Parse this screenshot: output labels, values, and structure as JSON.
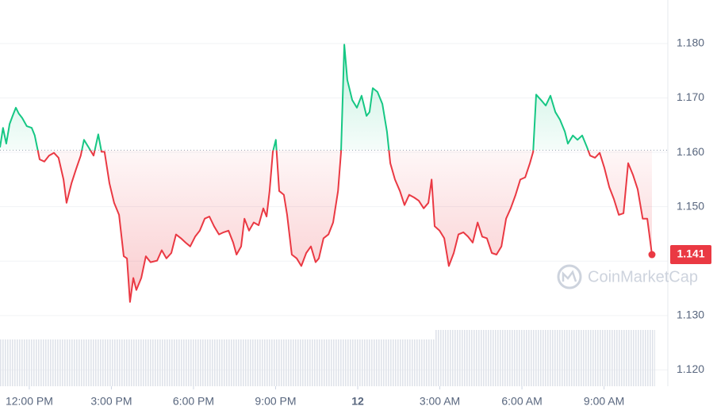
{
  "chart_data": {
    "type": "line",
    "x": [
      -1.07,
      -0.96,
      -0.84,
      -0.72,
      -0.61,
      -0.49,
      -0.38,
      -0.26,
      -0.09,
      0.09,
      0.2,
      0.38,
      0.55,
      0.72,
      0.9,
      1.07,
      1.25,
      1.36,
      1.54,
      1.71,
      1.88,
      2.0,
      2.17,
      2.35,
      2.52,
      2.64,
      2.75,
      2.93,
      3.1,
      3.28,
      3.45,
      3.57,
      3.68,
      3.8,
      3.91,
      4.09,
      4.26,
      4.43,
      4.67,
      4.84,
      5.01,
      5.19,
      5.36,
      5.54,
      5.71,
      5.88,
      6.06,
      6.23,
      6.41,
      6.58,
      6.75,
      6.93,
      7.1,
      7.28,
      7.45,
      7.57,
      7.74,
      7.86,
      8.03,
      8.2,
      8.38,
      8.55,
      8.67,
      8.78,
      8.9,
      9.01,
      9.13,
      9.3,
      9.42,
      9.59,
      9.77,
      9.94,
      10.12,
      10.29,
      10.46,
      10.58,
      10.75,
      10.93,
      11.1,
      11.28,
      11.39,
      11.51,
      11.62,
      11.8,
      11.97,
      12.14,
      12.32,
      12.43,
      12.55,
      12.72,
      12.9,
      13.07,
      13.19,
      13.36,
      13.54,
      13.71,
      13.88,
      14.06,
      14.23,
      14.41,
      14.58,
      14.7,
      14.81,
      14.99,
      15.16,
      15.33,
      15.51,
      15.68,
      15.86,
      16.03,
      16.2,
      16.38,
      16.55,
      16.72,
      16.9,
      17.07,
      17.25,
      17.42,
      17.59,
      17.77,
      17.94,
      18.12,
      18.29,
      18.41,
      18.52,
      18.7,
      18.87,
      19.04,
      19.22,
      19.39,
      19.57,
      19.68,
      19.86,
      20.03,
      20.2,
      20.38,
      20.49,
      20.67,
      20.84,
      21.01,
      21.19,
      21.36,
      21.54,
      21.71,
      21.88,
      22.06,
      22.23,
      22.41,
      22.58,
      22.75
    ],
    "values": [
      1.1609,
      1.1645,
      1.1616,
      1.1652,
      1.1667,
      1.1682,
      1.1671,
      1.1663,
      1.1648,
      1.1645,
      1.1631,
      1.1587,
      1.1583,
      1.1594,
      1.1599,
      1.159,
      1.155,
      1.1507,
      1.1543,
      1.1569,
      1.1594,
      1.1623,
      1.1609,
      1.1594,
      1.1633,
      1.1601,
      1.1601,
      1.1543,
      1.1507,
      1.1485,
      1.1409,
      1.1405,
      1.1325,
      1.1369,
      1.1347,
      1.1369,
      1.1409,
      1.1398,
      1.1401,
      1.142,
      1.1405,
      1.1415,
      1.1449,
      1.1442,
      1.1434,
      1.1427,
      1.1445,
      1.1456,
      1.1478,
      1.1482,
      1.1464,
      1.1449,
      1.1453,
      1.1456,
      1.1434,
      1.1412,
      1.1427,
      1.1478,
      1.1456,
      1.1471,
      1.1466,
      1.1497,
      1.1482,
      1.1529,
      1.1601,
      1.1623,
      1.1529,
      1.1522,
      1.1485,
      1.1412,
      1.1405,
      1.1391,
      1.1415,
      1.1427,
      1.1398,
      1.1405,
      1.1442,
      1.1449,
      1.1471,
      1.1529,
      1.1601,
      1.1798,
      1.1733,
      1.1696,
      1.1682,
      1.1704,
      1.1667,
      1.1674,
      1.1718,
      1.1711,
      1.1689,
      1.1638,
      1.158,
      1.155,
      1.1529,
      1.1503,
      1.1522,
      1.1517,
      1.1511,
      1.1497,
      1.1507,
      1.155,
      1.1464,
      1.1456,
      1.1442,
      1.1391,
      1.1415,
      1.1449,
      1.1453,
      1.1445,
      1.1434,
      1.1471,
      1.1445,
      1.1442,
      1.1415,
      1.1412,
      1.1427,
      1.1478,
      1.1497,
      1.1522,
      1.155,
      1.1554,
      1.158,
      1.1601,
      1.1706,
      1.1696,
      1.1686,
      1.1704,
      1.1674,
      1.166,
      1.1638,
      1.1616,
      1.1631,
      1.1623,
      1.1631,
      1.1609,
      1.1594,
      1.159,
      1.1599,
      1.1572,
      1.1536,
      1.1514,
      1.1485,
      1.1488,
      1.158,
      1.1558,
      1.1532,
      1.1478,
      1.1478,
      1.1412
    ],
    "reference_line": 1.1604,
    "up_color": "#16c784",
    "down_color": "#ea3943",
    "price_label": "1.141",
    "watermark": "CoinMarketCap",
    "xlim": [
      -1.07,
      23.33
    ],
    "xticks": [
      {
        "value": 0,
        "label": "12:00 PM"
      },
      {
        "value": 3,
        "label": "3:00 PM"
      },
      {
        "value": 6,
        "label": "6:00 PM"
      },
      {
        "value": 9,
        "label": "9:00 PM"
      },
      {
        "value": 12,
        "label": "12"
      },
      {
        "value": 15,
        "label": "3:00 AM"
      },
      {
        "value": 18,
        "label": "6:00 AM"
      },
      {
        "value": 21,
        "label": "9:00 AM"
      }
    ],
    "ylim": [
      1.117,
      1.188
    ],
    "yticks": [
      {
        "value": 1.12,
        "label": "1.120"
      },
      {
        "value": 1.13,
        "label": "1.130"
      },
      {
        "value": 1.14,
        "label": "1.140"
      },
      {
        "value": 1.15,
        "label": "1.150"
      },
      {
        "value": 1.16,
        "label": "1.160"
      },
      {
        "value": 1.17,
        "label": "1.170"
      },
      {
        "value": 1.18,
        "label": "1.180"
      }
    ],
    "grid": true
  }
}
